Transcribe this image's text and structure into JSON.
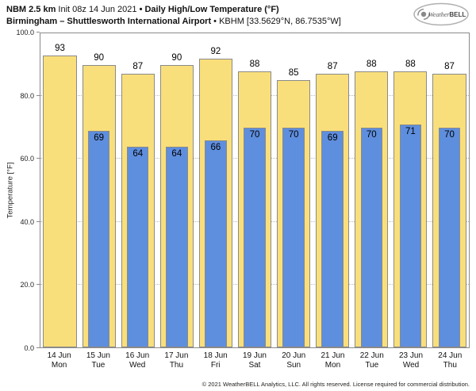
{
  "header": {
    "model": "NBM 2.5 km",
    "init": "Init 08z 14 Jun 2021",
    "bullet": "•",
    "product": "Daily High/Low Temperature (°F)",
    "station": "Birmingham – Shuttlesworth International Airport",
    "station_info": "KBHM [33.5629°N, 86.7535°W]"
  },
  "logo": {
    "brand_weather": "Weather",
    "brand_bell": "BELL"
  },
  "footer": {
    "copyright": "© 2021 WeatherBELL Analytics, LLC. All rights reserved. License required for commercial distribution."
  },
  "colors": {
    "high_fill": "#F9DF7B",
    "high_border": "#8a8a8a",
    "low_fill": "#5E8EDE",
    "low_border": "#8a8a8a"
  },
  "chart_data": {
    "type": "bar",
    "title": "Daily High/Low Temperature (°F)",
    "subtitle": "Birmingham – Shuttlesworth International Airport • KBHM [33.5629°N, 86.7535°W]",
    "ylabel": "Temperature [°F]",
    "ylim": [
      0,
      100
    ],
    "y_ticks": [
      0,
      20,
      40,
      60,
      80,
      100
    ],
    "y_tick_labels": [
      "0.0",
      "20.0",
      "40.0",
      "60.0",
      "80.0",
      "100.0"
    ],
    "grid": true,
    "categories": [
      {
        "date": "14 Jun",
        "day": "Mon"
      },
      {
        "date": "15 Jun",
        "day": "Tue"
      },
      {
        "date": "16 Jun",
        "day": "Wed"
      },
      {
        "date": "17 Jun",
        "day": "Thu"
      },
      {
        "date": "18 Jun",
        "day": "Fri"
      },
      {
        "date": "19 Jun",
        "day": "Sat"
      },
      {
        "date": "20 Jun",
        "day": "Sun"
      },
      {
        "date": "21 Jun",
        "day": "Mon"
      },
      {
        "date": "22 Jun",
        "day": "Tue"
      },
      {
        "date": "23 Jun",
        "day": "Wed"
      },
      {
        "date": "24 Jun",
        "day": "Thu"
      }
    ],
    "series": [
      {
        "name": "High",
        "values": [
          93,
          90,
          87,
          90,
          92,
          88,
          85,
          87,
          88,
          88,
          87
        ]
      },
      {
        "name": "Low",
        "values": [
          null,
          69,
          64,
          64,
          66,
          70,
          70,
          69,
          70,
          71,
          70
        ]
      }
    ]
  }
}
